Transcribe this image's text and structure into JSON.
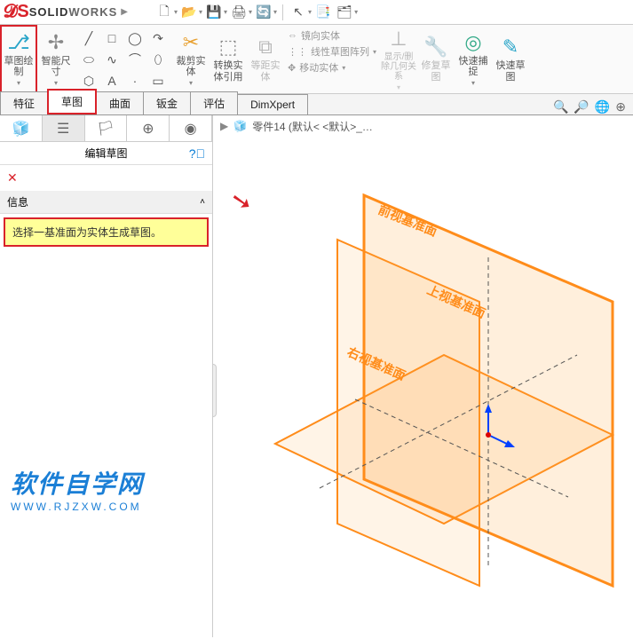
{
  "brand": {
    "prefix": "SOLID",
    "suffix": "WORKS"
  },
  "qat": [
    {
      "name": "new-doc-icon",
      "glyph": "🗋",
      "dd": true
    },
    {
      "name": "open-icon",
      "glyph": "📂",
      "dd": true
    },
    {
      "name": "save-icon",
      "glyph": "💾",
      "dd": true
    },
    {
      "name": "print-icon",
      "glyph": "🖨",
      "dd": true
    },
    {
      "name": "refresh-icon",
      "glyph": "🔄",
      "dd": true
    },
    {
      "name": "cursor-icon",
      "glyph": "↖",
      "dd": true,
      "sep_before": true
    },
    {
      "name": "config-icon",
      "glyph": "📑",
      "dd": false
    },
    {
      "name": "options-icon",
      "glyph": "🗂",
      "dd": true
    }
  ],
  "ribbon": {
    "sketch_btn": {
      "label": "草图绘制",
      "icon_color": "#2aa5c9"
    },
    "smart_dim": {
      "label": "智能尺寸"
    },
    "trim_btn": {
      "label": "裁剪实体"
    },
    "convert_btn": {
      "label": "转换实体引用"
    },
    "offset_btn": {
      "label": "等距实体"
    },
    "mirror_btn": {
      "label": "镜向实体"
    },
    "pattern_btn": {
      "label": "线性草图阵列"
    },
    "move_btn": {
      "label": "移动实体"
    },
    "display_btn": {
      "label": "显示/删除几何关系"
    },
    "repair_btn": {
      "label": "修复草图"
    },
    "quick_snap": {
      "label": "快速捕捉"
    },
    "quick_sketch": {
      "label": "快速草图"
    },
    "tools": [
      "╱",
      "□",
      "◯",
      "↷",
      "⬭",
      "∿",
      "⌒",
      "⬯",
      "⬡",
      "A",
      "·",
      "▭",
      "○",
      "🧲"
    ]
  },
  "tabs": [
    {
      "id": "features",
      "label": "特征"
    },
    {
      "id": "sketch",
      "label": "草图",
      "active": true
    },
    {
      "id": "surface",
      "label": "曲面"
    },
    {
      "id": "sheetmetal",
      "label": "钣金"
    },
    {
      "id": "evaluate",
      "label": "评估"
    },
    {
      "id": "dimxpert",
      "label": "DimXpert"
    }
  ],
  "view_tools": [
    "🔍",
    "🔎",
    "🌐",
    "⊕"
  ],
  "panel": {
    "title": "编辑草图",
    "info_label": "信息",
    "message": "选择一基准面为实体生成草图。"
  },
  "breadcrumb": {
    "part_icon": "🧊",
    "text": "零件14  (默认< <默认>_…"
  },
  "planes": {
    "front": "前视基准面",
    "top": "上视基准面",
    "right": "右视基准面",
    "line_color": "#ff8c1a",
    "fill_color": "rgba(255,165,60,0.15)",
    "dash_color": "#555"
  },
  "watermark": {
    "cn": "软件自学网",
    "url": "WWW.RJZXW.COM"
  }
}
